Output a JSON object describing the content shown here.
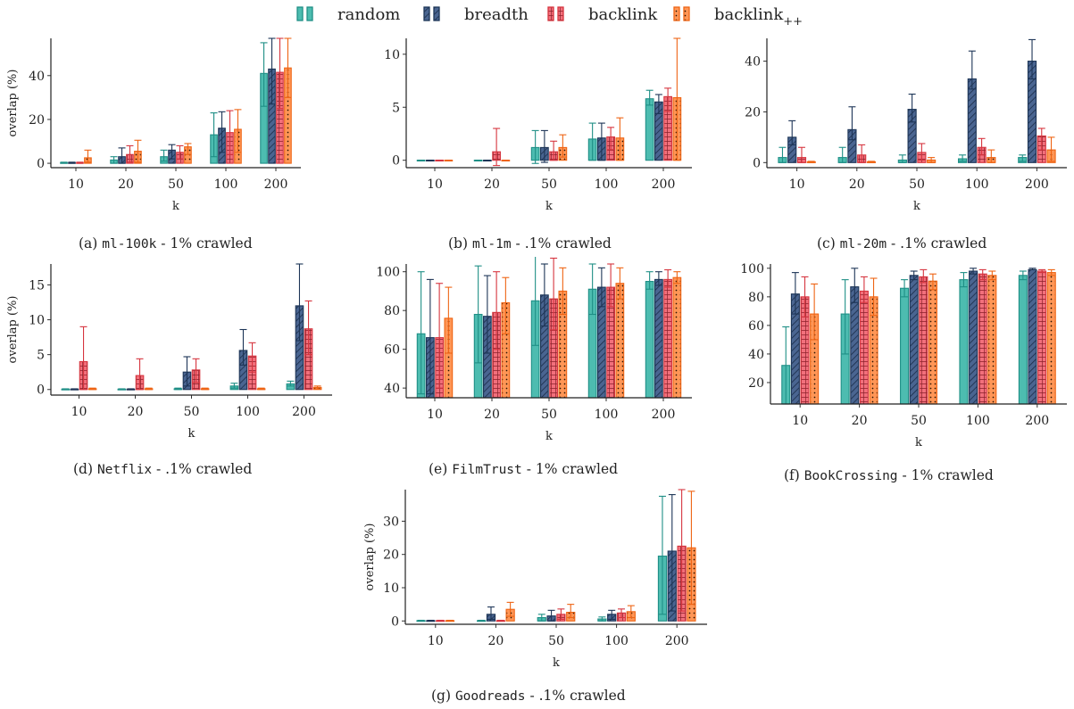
{
  "legend": {
    "items": [
      {
        "label": "random",
        "color": "#4dbcb0",
        "stroke": "#1f8f86",
        "pattern": "none"
      },
      {
        "label": "breadth",
        "color": "#4a6591",
        "stroke": "#1d3557",
        "pattern": "hatch"
      },
      {
        "label": "backlink",
        "color": "#f2707c",
        "stroke": "#d6353f",
        "pattern": "grid"
      },
      {
        "label": "backlink",
        "label_sub": "++",
        "color": "#ff9656",
        "stroke": "#ee6414",
        "pattern": "dots"
      }
    ]
  },
  "chart_data": [
    {
      "type": "bar",
      "id": "a",
      "caption": {
        "prefix": "(a) ",
        "dataset": "ml-100k",
        "suffix": " - 1% crawled"
      },
      "xlabel": "k",
      "ylabel": "overlap (%)",
      "categories": [
        "10",
        "20",
        "50",
        "100",
        "200"
      ],
      "ylim": [
        -2,
        57
      ],
      "yticks": [
        0,
        20,
        40
      ],
      "series": [
        {
          "name": "random",
          "values": [
            0.3,
            1.5,
            3,
            13,
            41
          ],
          "err_low": [
            0,
            0,
            1,
            3,
            26
          ],
          "err_high": [
            0.5,
            3,
            6,
            23,
            55
          ]
        },
        {
          "name": "breadth",
          "values": [
            0.3,
            3,
            6,
            16,
            43
          ],
          "err_low": [
            0,
            0,
            2,
            5,
            27
          ],
          "err_high": [
            0.5,
            7,
            8.5,
            23.5,
            57
          ]
        },
        {
          "name": "backlink",
          "values": [
            0.3,
            4,
            5,
            14,
            41.5
          ],
          "err_low": [
            0,
            0.5,
            2,
            4,
            25
          ],
          "err_high": [
            0.5,
            8,
            8,
            24,
            57
          ]
        },
        {
          "name": "backlink++",
          "values": [
            2.5,
            5.5,
            7.5,
            15.5,
            43.5
          ],
          "err_low": [
            0.5,
            0.5,
            4,
            5,
            30
          ],
          "err_high": [
            6,
            10.5,
            9,
            24.5,
            57
          ]
        }
      ]
    },
    {
      "type": "bar",
      "id": "b",
      "caption": {
        "prefix": "(b) ",
        "dataset": "ml-1m",
        "suffix": " - .1% crawled"
      },
      "xlabel": "k",
      "ylabel": "",
      "categories": [
        "10",
        "20",
        "50",
        "100",
        "200"
      ],
      "ylim": [
        -0.7,
        11.5
      ],
      "yticks": [
        0,
        5,
        10
      ],
      "series": [
        {
          "name": "random",
          "values": [
            0,
            0,
            1.2,
            2,
            5.8
          ],
          "err_low": [
            0,
            0,
            -0.3,
            0,
            5.2
          ],
          "err_high": [
            0,
            0,
            2.8,
            3.5,
            6.6
          ]
        },
        {
          "name": "breadth",
          "values": [
            0,
            0,
            1.2,
            2.1,
            5.5
          ],
          "err_low": [
            0,
            0,
            -0.2,
            0,
            4.4
          ],
          "err_high": [
            0,
            0,
            2.8,
            3.5,
            6.2
          ]
        },
        {
          "name": "backlink",
          "values": [
            0,
            0.8,
            0.8,
            2.2,
            6
          ],
          "err_low": [
            0,
            -0.5,
            0,
            1,
            4.6
          ],
          "err_high": [
            0,
            3,
            1.8,
            3.1,
            6.8
          ]
        },
        {
          "name": "backlink++",
          "values": [
            0,
            0,
            1.2,
            2.1,
            5.9
          ],
          "err_low": [
            0,
            0,
            0.3,
            0,
            0
          ],
          "err_high": [
            0,
            0,
            2.4,
            4,
            11.5
          ]
        }
      ]
    },
    {
      "type": "bar",
      "id": "c",
      "caption": {
        "prefix": "(c) ",
        "dataset": "ml-20m",
        "suffix": " - .1% crawled"
      },
      "xlabel": "k",
      "ylabel": "",
      "categories": [
        "10",
        "20",
        "50",
        "100",
        "200"
      ],
      "ylim": [
        -2,
        49
      ],
      "yticks": [
        0,
        20,
        40
      ],
      "series": [
        {
          "name": "random",
          "values": [
            2,
            2,
            1,
            1.5,
            2
          ],
          "err_low": [
            0,
            0,
            0,
            0.5,
            0.5
          ],
          "err_high": [
            6,
            6,
            3,
            3,
            3
          ]
        },
        {
          "name": "breadth",
          "values": [
            10,
            13,
            21,
            33,
            40
          ],
          "err_low": [
            7,
            9,
            16,
            29,
            33
          ],
          "err_high": [
            16.5,
            22,
            27,
            44,
            48.5
          ]
        },
        {
          "name": "backlink",
          "values": [
            2,
            3,
            4,
            6,
            10.5
          ],
          "err_low": [
            0,
            0,
            1,
            3,
            5
          ],
          "err_high": [
            6,
            7,
            7.5,
            9.5,
            13.5
          ]
        },
        {
          "name": "backlink++",
          "values": [
            0.3,
            0.3,
            1,
            2,
            5
          ],
          "err_low": [
            0,
            0,
            0,
            0,
            0.5
          ],
          "err_high": [
            0.5,
            0.5,
            2,
            5,
            10
          ]
        }
      ]
    },
    {
      "type": "bar",
      "id": "d",
      "caption": {
        "prefix": "(d) ",
        "dataset": "Netflix",
        "suffix": " - .1% crawled"
      },
      "xlabel": "k",
      "ylabel": "overlap (%)",
      "categories": [
        "10",
        "20",
        "50",
        "100",
        "200"
      ],
      "ylim": [
        -0.8,
        18
      ],
      "yticks": [
        0,
        5,
        10,
        15
      ],
      "series": [
        {
          "name": "random",
          "values": [
            0.05,
            0.05,
            0.1,
            0.5,
            0.8
          ],
          "err_low": [
            0,
            0,
            0,
            0.2,
            0.5
          ],
          "err_high": [
            0.1,
            0.1,
            0.2,
            0.9,
            1.2
          ]
        },
        {
          "name": "breadth",
          "values": [
            0.05,
            0.05,
            2.5,
            5.6,
            12
          ],
          "err_low": [
            0,
            0,
            0.5,
            3.5,
            7
          ],
          "err_high": [
            0.1,
            0.1,
            4.7,
            8.6,
            18
          ]
        },
        {
          "name": "backlink",
          "values": [
            4,
            2,
            2.8,
            4.8,
            8.7
          ],
          "err_low": [
            0,
            0,
            1,
            2.5,
            5
          ],
          "err_high": [
            9,
            4.4,
            4.4,
            6.7,
            12.7
          ]
        },
        {
          "name": "backlink++",
          "values": [
            0.1,
            0.1,
            0.1,
            0.1,
            0.3
          ],
          "err_low": [
            0,
            0,
            0,
            0,
            0.1
          ],
          "err_high": [
            0.2,
            0.2,
            0.2,
            0.2,
            0.5
          ]
        }
      ]
    },
    {
      "type": "bar",
      "id": "e",
      "caption": {
        "prefix": "(e) ",
        "dataset": "FilmTrust",
        "suffix": " - 1% crawled"
      },
      "xlabel": "k",
      "ylabel": "",
      "categories": [
        "10",
        "20",
        "50",
        "100",
        "200"
      ],
      "ylim": [
        35,
        104
      ],
      "yticks": [
        40,
        60,
        80,
        100
      ],
      "series": [
        {
          "name": "random",
          "values": [
            68,
            78,
            85,
            91,
            95
          ],
          "err_low": [
            37,
            53,
            62,
            78,
            91
          ],
          "err_high": [
            100,
            103,
            108,
            104,
            100
          ]
        },
        {
          "name": "breadth",
          "values": [
            66,
            77,
            88,
            92,
            96
          ],
          "err_low": [
            37,
            58,
            72,
            82,
            93
          ],
          "err_high": [
            96,
            98,
            104,
            102,
            100
          ]
        },
        {
          "name": "backlink",
          "values": [
            66,
            79,
            86,
            92,
            96
          ],
          "err_low": [
            40,
            60,
            70,
            82,
            92
          ],
          "err_high": [
            94,
            100,
            107,
            104,
            101
          ]
        },
        {
          "name": "backlink++",
          "values": [
            76,
            84,
            90,
            94,
            97
          ],
          "err_low": [
            58,
            68,
            78,
            86,
            94
          ],
          "err_high": [
            92,
            97,
            102,
            102,
            100
          ]
        }
      ]
    },
    {
      "type": "bar",
      "id": "f",
      "caption": {
        "prefix": "(f) ",
        "dataset": "BookCrossing",
        "suffix": " - 1% crawled"
      },
      "xlabel": "k",
      "ylabel": "",
      "categories": [
        "10",
        "20",
        "50",
        "100",
        "200"
      ],
      "ylim": [
        5,
        103
      ],
      "yticks": [
        20,
        40,
        60,
        80,
        100
      ],
      "series": [
        {
          "name": "random",
          "values": [
            32,
            68,
            86,
            92,
            95
          ],
          "err_low": [
            5,
            40,
            80,
            87,
            92
          ],
          "err_high": [
            59,
            92,
            92,
            97,
            98
          ]
        },
        {
          "name": "breadth",
          "values": [
            82,
            87,
            95,
            98,
            99
          ],
          "err_low": [
            68,
            76,
            92,
            96,
            99
          ],
          "err_high": [
            97,
            100,
            98,
            100,
            100
          ]
        },
        {
          "name": "backlink",
          "values": [
            80,
            84,
            94,
            96,
            98
          ],
          "err_low": [
            66,
            76,
            90,
            92,
            97
          ],
          "err_high": [
            94,
            94,
            99,
            99,
            99
          ]
        },
        {
          "name": "backlink++",
          "values": [
            68,
            80,
            91,
            95,
            97
          ],
          "err_low": [
            50,
            67,
            85,
            92,
            95
          ],
          "err_high": [
            89,
            93,
            96,
            98,
            99
          ]
        }
      ]
    },
    {
      "type": "bar",
      "id": "g",
      "caption": {
        "prefix": "(g) ",
        "dataset": "Goodreads",
        "suffix": " - .1% crawled"
      },
      "xlabel": "k",
      "ylabel": "overlap (%)",
      "categories": [
        "10",
        "20",
        "50",
        "100",
        "200"
      ],
      "ylim": [
        -1,
        39.5
      ],
      "yticks": [
        0,
        10,
        20,
        30
      ],
      "series": [
        {
          "name": "random",
          "values": [
            0.1,
            0.1,
            1,
            0.6,
            19.5
          ],
          "err_low": [
            0,
            0,
            0,
            0,
            2
          ],
          "err_high": [
            0.2,
            0.2,
            2,
            1.2,
            37.5
          ]
        },
        {
          "name": "breadth",
          "values": [
            0.1,
            2,
            1.5,
            2,
            21
          ],
          "err_low": [
            0,
            0.5,
            0,
            0.5,
            3
          ],
          "err_high": [
            0.2,
            4.2,
            3.2,
            3.2,
            38
          ]
        },
        {
          "name": "backlink",
          "values": [
            0.1,
            0.1,
            2,
            2.4,
            22.5
          ],
          "err_low": [
            0,
            0,
            0.5,
            1,
            3
          ],
          "err_high": [
            0.2,
            0.2,
            3.6,
            3.6,
            39.5
          ]
        },
        {
          "name": "backlink++",
          "values": [
            0.1,
            3.5,
            2.6,
            2.8,
            22
          ],
          "err_low": [
            0,
            1.4,
            1,
            1,
            5
          ],
          "err_high": [
            0.2,
            5.6,
            5,
            4.6,
            39
          ]
        }
      ]
    }
  ]
}
